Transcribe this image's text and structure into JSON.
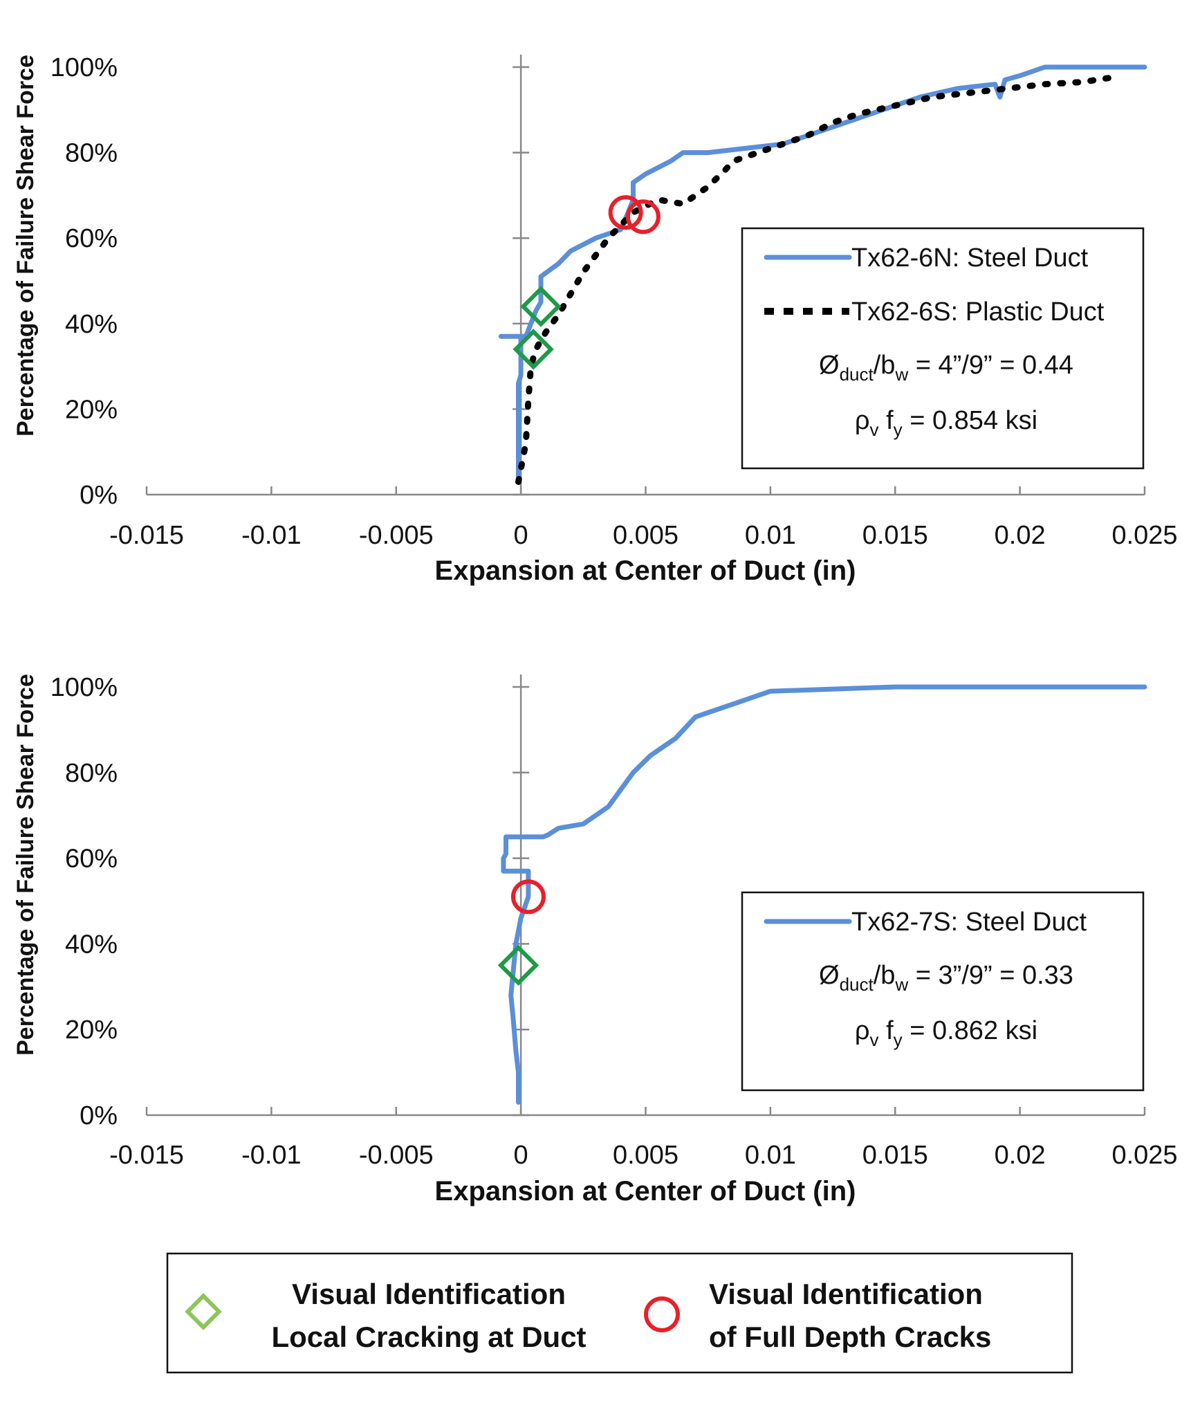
{
  "chart_data": [
    {
      "type": "line",
      "xlabel": "Expansion at Center of Duct (in)",
      "ylabel": "Percentage of Failure Shear Force",
      "xlim": [
        -0.015,
        0.025
      ],
      "ylim": [
        0,
        100
      ],
      "xticks": [
        "-0.015",
        "-0.01",
        "-0.005",
        "0",
        "0.005",
        "0.01",
        "0.015",
        "0.02",
        "0.025"
      ],
      "yticks": [
        "0%",
        "20%",
        "40%",
        "60%",
        "80%",
        "100%"
      ],
      "legend_placement": "right",
      "legend_notes": [
        {
          "pre": "Ø",
          "sub": "duct",
          "mid": "/b",
          "sub2": "w",
          "post": " = 4”/9” = 0.44"
        },
        {
          "pre": "ρ",
          "sub": "v",
          "mid": " f",
          "sub2": "y",
          "post": " = 0.854 ksi"
        }
      ],
      "series": [
        {
          "name": "Tx62-6N: Steel Duct",
          "color": "#5b8fd8",
          "style": "solid",
          "x": [
            -0.0001,
            -0.0001,
            0.0,
            0.0,
            -0.0008,
            0.0002,
            0.0006,
            0.0008,
            0.0008,
            0.0015,
            0.002,
            0.003,
            0.0035,
            0.004,
            0.0043,
            0.0045,
            0.0045,
            0.005,
            0.006,
            0.0065,
            0.0075,
            0.009,
            0.0105,
            0.012,
            0.0135,
            0.015,
            0.016,
            0.0175,
            0.019,
            0.0192,
            0.0194,
            0.02,
            0.021,
            0.025
          ],
          "y": [
            3,
            26,
            28,
            37,
            37,
            37,
            43,
            45,
            51,
            54,
            57,
            60,
            61,
            62,
            66,
            69,
            73,
            75,
            78,
            80,
            80,
            81,
            82,
            85,
            88,
            91,
            93,
            95,
            96,
            93,
            97,
            98,
            100,
            100
          ]
        },
        {
          "name": "Tx62-6S: Plastic Duct",
          "color": "#000000",
          "style": "dashed",
          "x": [
            -0.0001,
            0.0002,
            0.0003,
            0.0004,
            0.0006,
            0.001,
            0.0015,
            0.0025,
            0.0035,
            0.0045,
            0.0055,
            0.0065,
            0.0075,
            0.0082,
            0.0085,
            0.0095,
            0.0105,
            0.0115,
            0.0125,
            0.0135,
            0.015,
            0.0165,
            0.018,
            0.0195,
            0.021,
            0.0225,
            0.0236
          ],
          "y": [
            3,
            12,
            22,
            30,
            34,
            38,
            42,
            52,
            60,
            66,
            69,
            68,
            72,
            76,
            78,
            80,
            82,
            84,
            87,
            89,
            91,
            93,
            94,
            95,
            96,
            96.5,
            97.5
          ]
        }
      ],
      "markers": [
        {
          "type": "local-cracking",
          "x": 0.0008,
          "y": 44
        },
        {
          "type": "local-cracking",
          "x": 0.0005,
          "y": 34
        },
        {
          "type": "full-depth-cracks",
          "x": 0.0042,
          "y": 66
        },
        {
          "type": "full-depth-cracks",
          "x": 0.0049,
          "y": 65
        }
      ]
    },
    {
      "type": "line",
      "xlabel": "Expansion at Center of Duct (in)",
      "ylabel": "Percentage of Failure Shear Force",
      "xlim": [
        -0.015,
        0.025
      ],
      "ylim": [
        0,
        100
      ],
      "xticks": [
        "-0.015",
        "-0.01",
        "-0.005",
        "0",
        "0.005",
        "0.01",
        "0.015",
        "0.02",
        "0.025"
      ],
      "yticks": [
        "0%",
        "20%",
        "40%",
        "60%",
        "80%",
        "100%"
      ],
      "legend_placement": "right",
      "legend_notes": [
        {
          "pre": "Ø",
          "sub": "duct",
          "mid": "/b",
          "sub2": "w",
          "post": " = 3”/9” = 0.33"
        },
        {
          "pre": "ρ",
          "sub": "v",
          "mid": " f",
          "sub2": "y",
          "post": " = 0.862 ksi"
        }
      ],
      "series": [
        {
          "name": "Tx62-7S: Steel Duct",
          "color": "#5b8fd8",
          "style": "solid",
          "x": [
            -0.0001,
            -0.0001,
            -0.0002,
            -0.0003,
            -0.0004,
            -0.0003,
            -0.0002,
            0.0,
            0.0003,
            0.0003,
            -0.0007,
            -0.0007,
            -0.0006,
            -0.0006,
            0.0009,
            0.0011,
            0.0015,
            0.0025,
            0.0035,
            0.0045,
            0.0052,
            0.0062,
            0.007,
            0.0085,
            0.01,
            0.0125,
            0.015,
            0.025
          ],
          "y": [
            3,
            10,
            15,
            22,
            28,
            34,
            40,
            46,
            51,
            57,
            57,
            60,
            61,
            65,
            65,
            65.5,
            67,
            68,
            72,
            80,
            84,
            88,
            93,
            96,
            99,
            99.5,
            100,
            100
          ]
        }
      ],
      "markers": [
        {
          "type": "local-cracking",
          "x": -0.0001,
          "y": 35
        },
        {
          "type": "full-depth-cracks",
          "x": 0.0003,
          "y": 51
        }
      ]
    }
  ],
  "key": {
    "local_cracking": {
      "line1": "Visual Identification",
      "line2": "Local Cracking at Duct",
      "color": "#8cc65a"
    },
    "full_depth": {
      "line1": "Visual Identification",
      "line2": "of Full Depth Cracks",
      "color": "#e8202a"
    }
  },
  "colors": {
    "axis": "#888888",
    "diamond": "#1f9a48",
    "circle": "#e8202a"
  }
}
